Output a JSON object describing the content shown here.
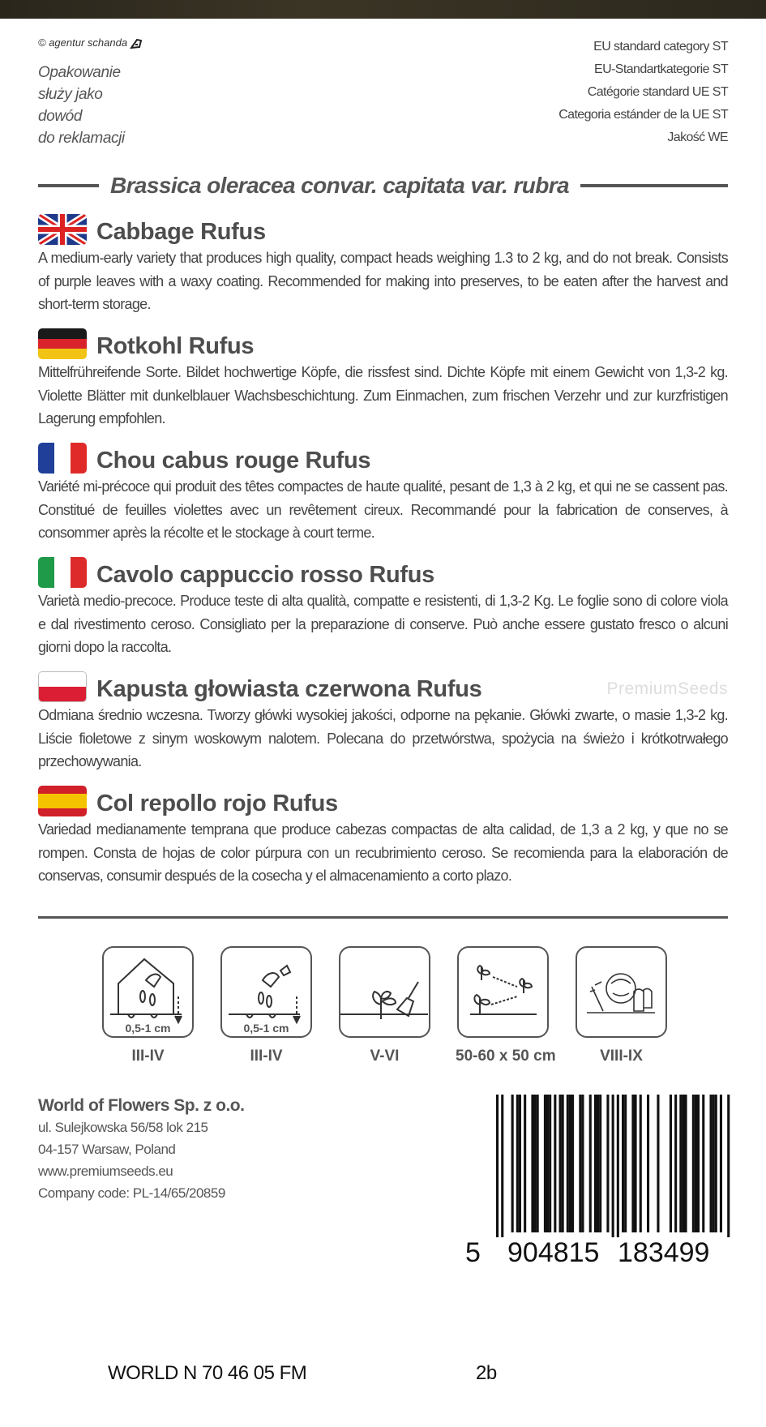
{
  "header": {
    "copyright": "© agentur schanda",
    "complaint_note": [
      "Opakowanie",
      "służy jako",
      "dowód",
      "do reklamacji"
    ],
    "categories": [
      "EU standard category ST",
      "EU-Standartkategorie ST",
      "Catégorie standard UE ST",
      "Categoria estánder de la UE ST",
      "Jakość WE"
    ]
  },
  "latin_name": "Brassica oleracea convar. capitata var. rubra",
  "sections": [
    {
      "flag": "uk-flag",
      "title": "Cabbage Rufus",
      "text": "A medium-early variety that produces high quality, compact heads weighing 1.3 to 2 kg, and do not break. Consists of purple leaves with a waxy coating. Recommended for making into preserves, to be eaten after the harvest and short-term storage."
    },
    {
      "flag": "germany-flag",
      "title": "Rotkohl Rufus",
      "text": "Mittelfrühreifende Sorte. Bildet hochwertige Köpfe, die rissfest sind. Dichte Köpfe mit einem Gewicht von 1,3-2 kg. Violette Blätter mit dunkelblauer Wachsbeschichtung. Zum Einmachen, zum frischen Verzehr und zur kurzfristigen Lagerung empfohlen."
    },
    {
      "flag": "france-flag",
      "title": "Chou cabus rouge Rufus",
      "text": "Variété mi-précoce qui produit des têtes compactes de haute qualité, pesant de 1,3 à 2 kg, et qui ne se cassent pas. Constitué de feuilles violettes avec un revêtement cireux. Recommandé pour la fabrication de conserves, à consommer après la récolte et le stockage à court terme."
    },
    {
      "flag": "italy-flag",
      "title": "Cavolo cappuccio rosso Rufus",
      "text": "Varietà medio-precoce. Produce teste di alta qualità, compatte e resistenti, di 1,3-2 Kg. Le foglie sono di colore viola e dal rivestimento ceroso. Consigliato per la preparazione di conserve. Può anche essere gustato fresco o alcuni giorni dopo la raccolta."
    },
    {
      "flag": "poland-flag",
      "title": "Kapusta głowiasta czerwona Rufus",
      "text": "Odmiana średnio wczesna. Tworzy główki wysokiej jakości, odporne na pękanie. Główki zwarte, o masie 1,3-2 kg. Liście fioletowe z sinym woskowym nalotem. Polecana do przetwórstwa, spożycia na świeżo i krótkotrwałego przechowywania."
    },
    {
      "flag": "spain-flag",
      "title": "Col repollo rojo Rufus",
      "text": "Variedad medianamente temprana que produce cabezas compactas de alta calidad, de 1,3 a 2 kg, y que no se rompen. Consta de hojas de color púrpura con un recubrimiento ceroso. Se recomienda para la elaboración de conservas, consumir después de la cosecha y el almacenamiento a corto plazo."
    }
  ],
  "watermark": "PremiumSeeds",
  "cultivation": [
    {
      "icon": "greenhouse-sowing-icon",
      "depth": "0,5-1 cm",
      "label": "III-IV"
    },
    {
      "icon": "outdoor-sowing-icon",
      "depth": "0,5-1 cm",
      "label": "III-IV"
    },
    {
      "icon": "transplanting-icon",
      "label": "V-VI"
    },
    {
      "icon": "plant-spacing-icon",
      "label": "50-60 x 50 cm"
    },
    {
      "icon": "harvest-icon",
      "label": "VIII-IX"
    }
  ],
  "company": {
    "name": "World of Flowers Sp. z o.o.",
    "street": "ul. Sulejkowska 56/58 lok 215",
    "city": "04-157 Warsaw, Poland",
    "website": "www.premiumseeds.eu",
    "code": "Company code: PL-14/65/20859"
  },
  "barcode": {
    "digits": "5904815183499",
    "display": [
      "5",
      "904815",
      "183499"
    ]
  },
  "footer": {
    "code": "WORLD N 70 46 05  FM",
    "variant": "2b"
  }
}
